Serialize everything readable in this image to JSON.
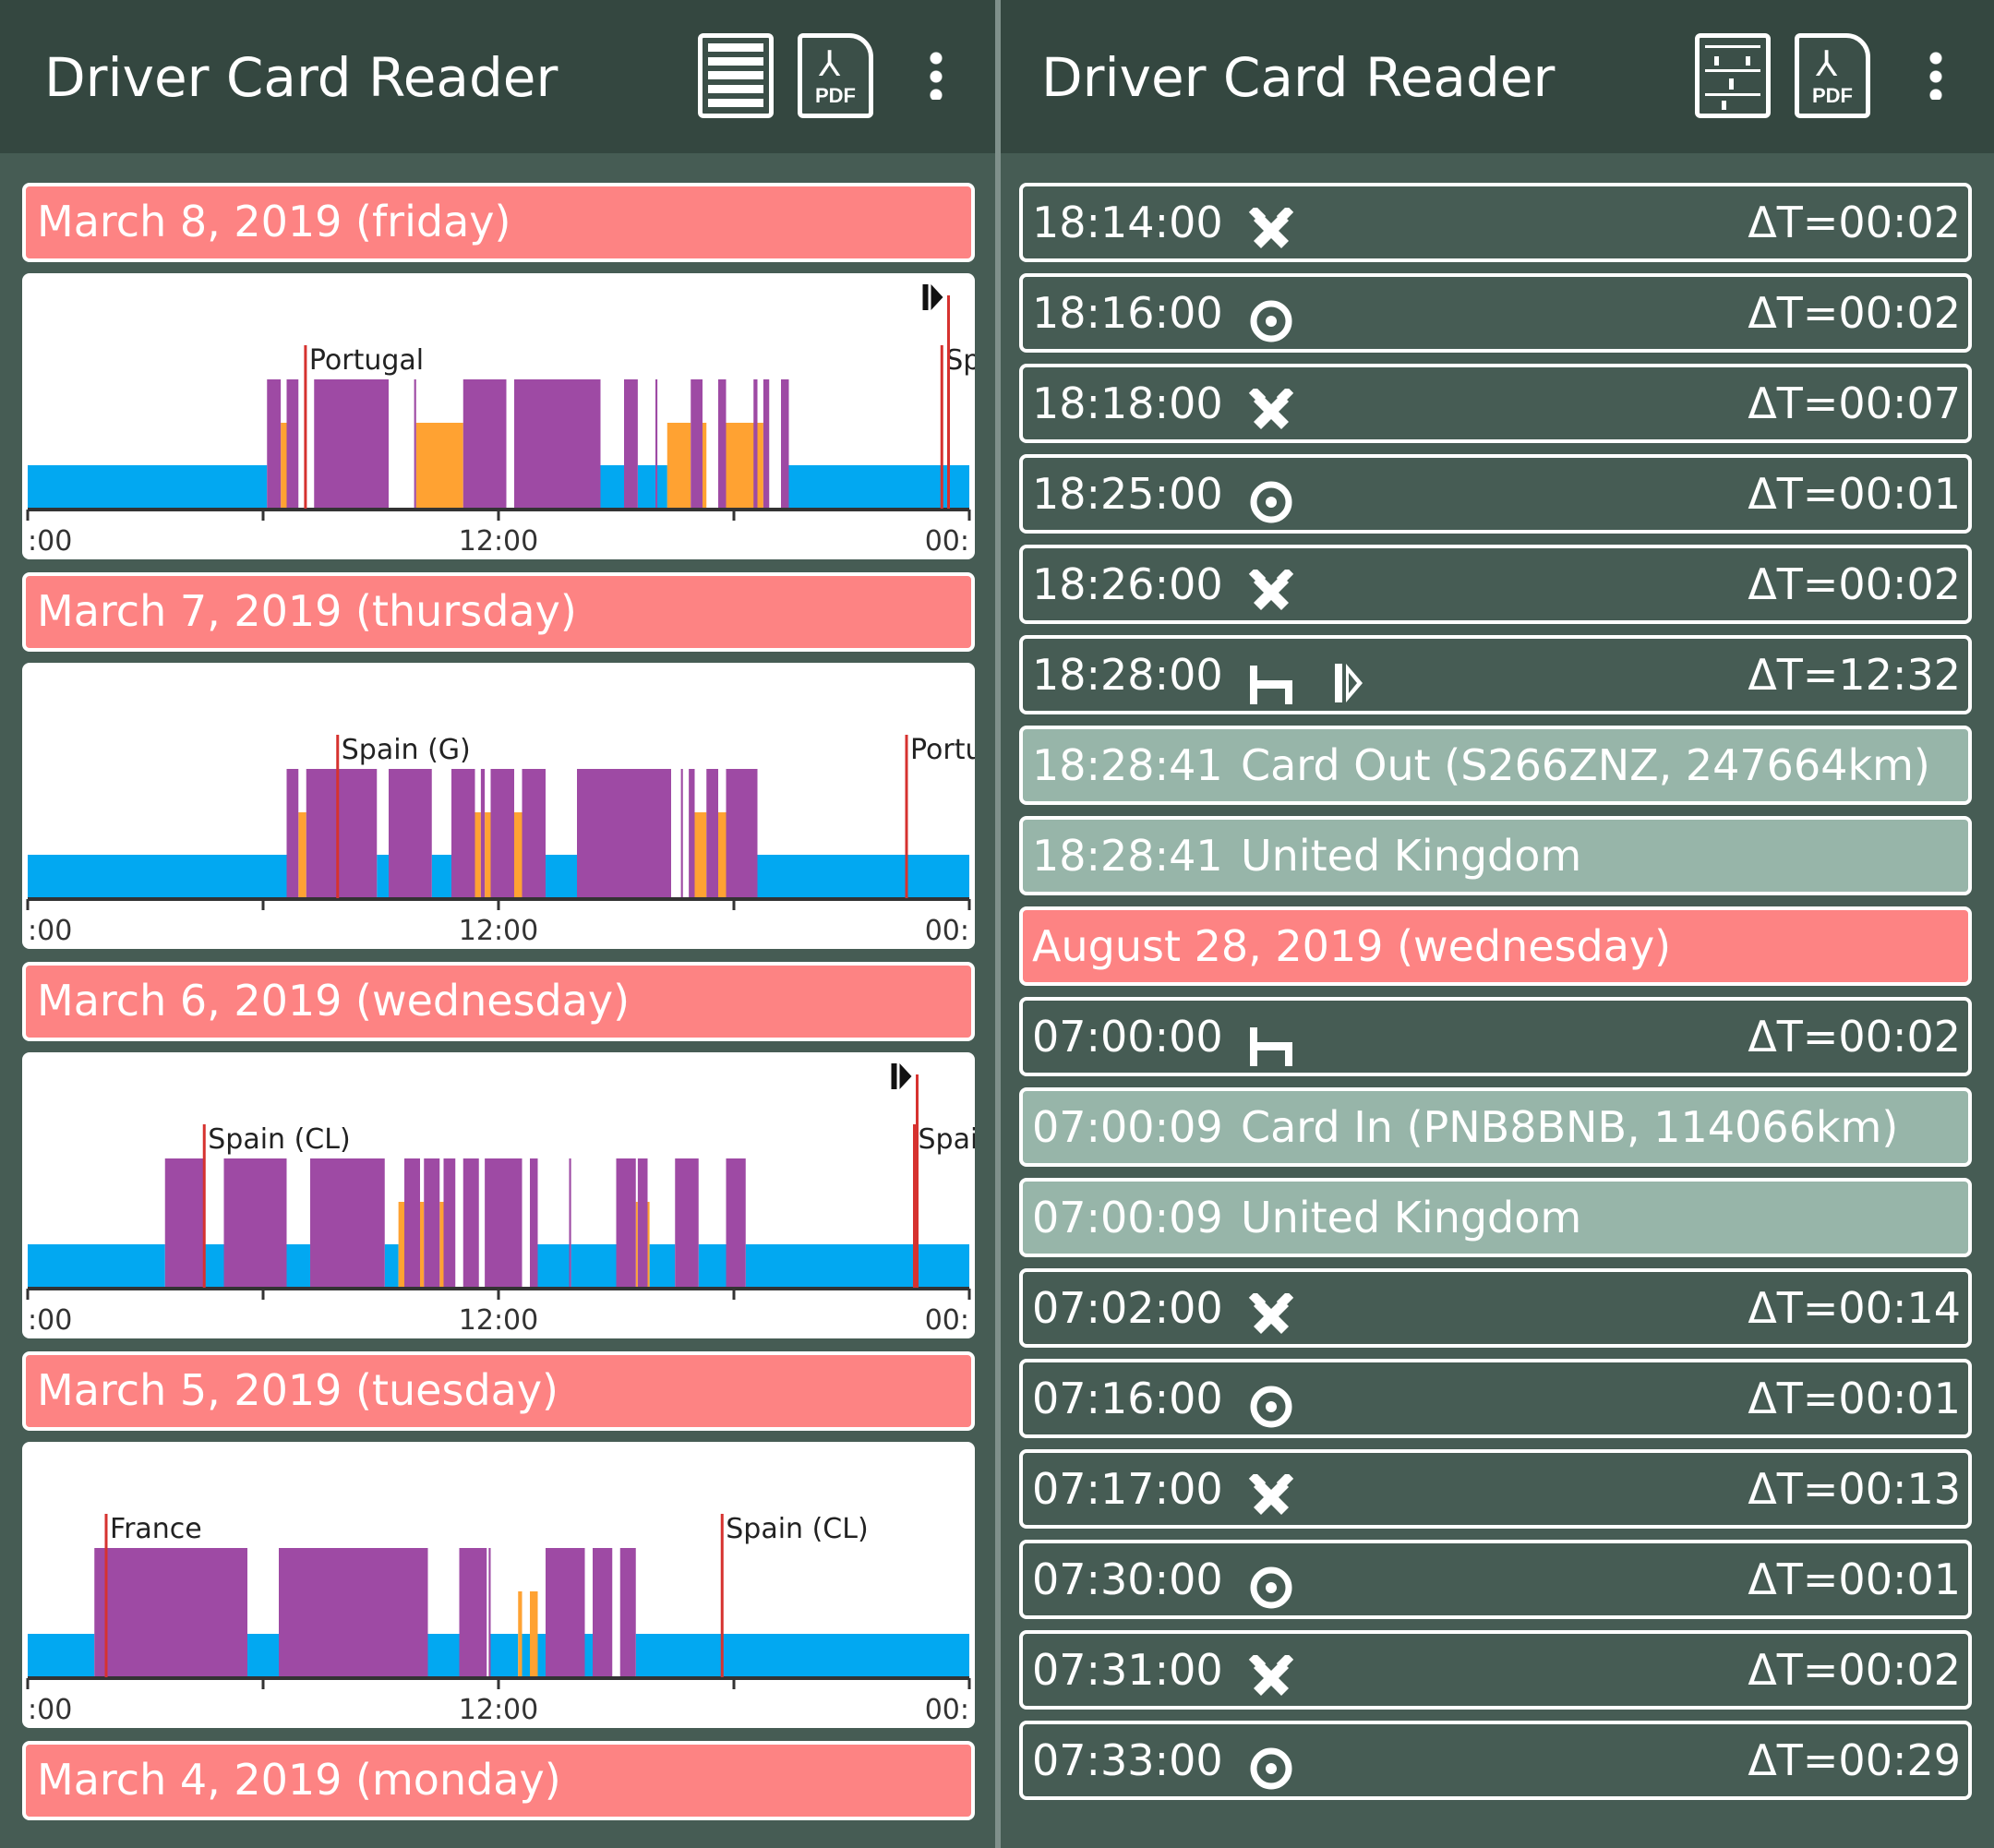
{
  "app_title": "Driver Card Reader",
  "left": {
    "toolbar": {
      "list_icon": "list-view-icon",
      "pdf_label": "PDF",
      "menu_icon": "more-vert-icon"
    },
    "days": [
      {
        "header": "March 8, 2019 (friday)",
        "countries": [
          {
            "at": 7.08,
            "label": "Portugal"
          },
          {
            "at": 23.3,
            "label": "Spain (G)"
          }
        ],
        "card_mark_at": 23.0
      },
      {
        "header": "March 7, 2019 (thursday)",
        "countries": [
          {
            "at": 7.9,
            "label": "Spain (G)"
          },
          {
            "at": 22.4,
            "label": "Portugal"
          }
        ],
        "card_mark_at": null
      },
      {
        "header": "March 6, 2019 (wednesday)",
        "countries": [
          {
            "at": 4.5,
            "label": "Spain (CL)"
          },
          {
            "at": 22.6,
            "label": "Spain (G)"
          }
        ],
        "card_mark_at": 22.2
      },
      {
        "header": "March 5, 2019 (tuesday)",
        "countries": [
          {
            "at": 2.0,
            "label": "France"
          },
          {
            "at": 17.7,
            "label": "Spain (CL)"
          }
        ],
        "card_mark_at": null
      },
      {
        "header": "March 4, 2019 (monday)"
      }
    ],
    "axis_labels": [
      ":00",
      "12:00",
      "00:"
    ]
  },
  "chart_data": [
    {
      "type": "area",
      "title": "",
      "xlabel": "",
      "ylabel": "",
      "x_range_hours": [
        0,
        24
      ],
      "tick_labels": [
        ":00",
        "12:00",
        "00:"
      ],
      "series": [
        {
          "name": "",
          "color": "#9e4aa4",
          "level": "drive",
          "intervals": [
            [
              6.1,
              6.45
            ],
            [
              6.6,
              6.9
            ],
            [
              7.3,
              9.2
            ],
            [
              8.9,
              9.1
            ],
            [
              9.85,
              9.9
            ],
            [
              11.1,
              12.2
            ],
            [
              12.4,
              14.6
            ],
            [
              15.2,
              15.55
            ],
            [
              16.0,
              16.05
            ],
            [
              16.9,
              17.2
            ],
            [
              17.6,
              17.8
            ],
            [
              18.5,
              18.6
            ],
            [
              18.75,
              18.9
            ],
            [
              19.2,
              19.4
            ]
          ]
        },
        {
          "name": "",
          "color": "#ffa232",
          "level": "work",
          "intervals": [
            [
              6.45,
              6.6
            ],
            [
              9.9,
              11.1
            ],
            [
              16.3,
              16.9
            ],
            [
              17.2,
              17.3
            ],
            [
              17.8,
              18.7
            ],
            [
              18.6,
              18.75
            ]
          ]
        },
        {
          "name": "",
          "color": "#02a8f1",
          "level": "rest",
          "intervals": [
            [
              0,
              6.1
            ],
            [
              14.6,
              15.2
            ],
            [
              15.55,
              16.3
            ],
            [
              16.05,
              16.3
            ],
            [
              19.4,
              24
            ]
          ]
        }
      ]
    },
    {
      "type": "area",
      "title": "",
      "xlabel": "",
      "ylabel": "",
      "x_range_hours": [
        0,
        24
      ],
      "tick_labels": [
        ":00",
        "12:00",
        "00:"
      ],
      "series": [
        {
          "name": "",
          "color": "#9e4aa4",
          "level": "drive",
          "intervals": [
            [
              6.6,
              6.9
            ],
            [
              7.1,
              7.2
            ],
            [
              7.2,
              8.9
            ],
            [
              9.2,
              10.3
            ],
            [
              10.8,
              11.4
            ],
            [
              11.55,
              11.65
            ],
            [
              11.8,
              12.4
            ],
            [
              12.6,
              13.2
            ],
            [
              14.0,
              16.4
            ],
            [
              16.65,
              16.7
            ],
            [
              16.85,
              17.0
            ],
            [
              17.3,
              17.6
            ],
            [
              17.8,
              18.6
            ]
          ]
        },
        {
          "name": "",
          "color": "#ffa232",
          "level": "work",
          "intervals": [
            [
              6.9,
              7.1
            ],
            [
              11.4,
              11.55
            ],
            [
              11.65,
              12.6
            ],
            [
              17.0,
              17.3
            ],
            [
              17.6,
              17.8
            ]
          ]
        },
        {
          "name": "",
          "color": "#02a8f1",
          "level": "rest",
          "intervals": [
            [
              0,
              6.6
            ],
            [
              8.9,
              9.2
            ],
            [
              10.3,
              10.8
            ],
            [
              13.2,
              14.0
            ],
            [
              18.6,
              24
            ]
          ]
        }
      ]
    },
    {
      "type": "area",
      "title": "",
      "xlabel": "",
      "ylabel": "",
      "x_range_hours": [
        0,
        24
      ],
      "tick_labels": [
        ":00",
        "12:00",
        "00:"
      ],
      "series": [
        {
          "name": "",
          "color": "#9e4aa4",
          "level": "drive",
          "intervals": [
            [
              3.5,
              4.5
            ],
            [
              5.0,
              6.6
            ],
            [
              7.2,
              9.1
            ],
            [
              9.6,
              10.0
            ],
            [
              10.1,
              10.5
            ],
            [
              10.6,
              10.9
            ],
            [
              11.1,
              11.5
            ],
            [
              11.65,
              12.6
            ],
            [
              12.8,
              13.0
            ],
            [
              13.8,
              13.85
            ],
            [
              15.0,
              15.5
            ],
            [
              15.55,
              15.8
            ],
            [
              16.5,
              17.1
            ],
            [
              17.8,
              18.3
            ]
          ]
        },
        {
          "name": "",
          "color": "#ffa232",
          "level": "work",
          "intervals": [
            [
              9.45,
              9.6
            ],
            [
              10.0,
              10.1
            ],
            [
              10.5,
              10.6
            ],
            [
              15.5,
              15.55
            ],
            [
              15.8,
              15.85
            ]
          ]
        },
        {
          "name": "",
          "color": "#02a8f1",
          "level": "rest",
          "intervals": [
            [
              0,
              3.5
            ],
            [
              4.5,
              5.0
            ],
            [
              6.6,
              7.2
            ],
            [
              9.1,
              9.45
            ],
            [
              13.0,
              13.8
            ],
            [
              13.85,
              15.0
            ],
            [
              15.85,
              16.5
            ],
            [
              17.1,
              17.8
            ],
            [
              18.3,
              24
            ]
          ]
        }
      ]
    },
    {
      "type": "area",
      "title": "",
      "xlabel": "",
      "ylabel": "",
      "x_range_hours": [
        0,
        24
      ],
      "tick_labels": [
        ":00",
        "12:00",
        "00:"
      ],
      "series": [
        {
          "name": "",
          "color": "#9e4aa4",
          "level": "drive",
          "intervals": [
            [
              1.7,
              5.6
            ],
            [
              6.4,
              10.2
            ],
            [
              11.0,
              11.7
            ],
            [
              11.75,
              11.8
            ],
            [
              13.2,
              14.2
            ],
            [
              14.4,
              14.9
            ],
            [
              15.1,
              15.5
            ]
          ]
        },
        {
          "name": "",
          "color": "#ffa232",
          "level": "work",
          "intervals": [
            [
              12.5,
              12.6
            ],
            [
              12.8,
              13.0
            ]
          ]
        },
        {
          "name": "",
          "color": "#02a8f1",
          "level": "rest",
          "intervals": [
            [
              0,
              1.7
            ],
            [
              5.6,
              6.4
            ],
            [
              10.2,
              11.0
            ],
            [
              11.8,
              12.5
            ],
            [
              12.6,
              12.8
            ],
            [
              13.0,
              13.2
            ],
            [
              14.2,
              14.4
            ],
            [
              15.5,
              24
            ]
          ]
        }
      ]
    }
  ],
  "right": {
    "toolbar": {
      "graph_icon": "graph-view-icon",
      "pdf_label": "PDF",
      "menu_icon": "more-vert-icon"
    },
    "rows": [
      {
        "kind": "activity",
        "time": "18:14:00",
        "icon": "work-icon",
        "delta": "ΔT=00:02"
      },
      {
        "kind": "activity",
        "time": "18:16:00",
        "icon": "availability-icon",
        "delta": "ΔT=00:02"
      },
      {
        "kind": "activity",
        "time": "18:18:00",
        "icon": "work-icon",
        "delta": "ΔT=00:07"
      },
      {
        "kind": "activity",
        "time": "18:25:00",
        "icon": "availability-icon",
        "delta": "ΔT=00:01"
      },
      {
        "kind": "activity",
        "time": "18:26:00",
        "icon": "work-icon",
        "delta": "ΔT=00:02"
      },
      {
        "kind": "activity",
        "time": "18:28:00",
        "icon": "rest-bed-icon",
        "icon2": "card-out-icon",
        "delta": "ΔT=12:32"
      },
      {
        "kind": "event",
        "time": "18:28:41",
        "text": "Card Out (S266ZNZ, 247664km)"
      },
      {
        "kind": "event",
        "time": "18:28:41",
        "text": "United Kingdom"
      },
      {
        "kind": "date",
        "text": "August 28, 2019 (wednesday)"
      },
      {
        "kind": "activity",
        "time": "07:00:00",
        "icon": "rest-bed-icon",
        "delta": "ΔT=00:02"
      },
      {
        "kind": "event",
        "time": "07:00:09",
        "text": "Card In (PNB8BNB, 114066km)"
      },
      {
        "kind": "event",
        "time": "07:00:09",
        "text": "United Kingdom"
      },
      {
        "kind": "activity",
        "time": "07:02:00",
        "icon": "work-icon",
        "delta": "ΔT=00:14"
      },
      {
        "kind": "activity",
        "time": "07:16:00",
        "icon": "availability-icon",
        "delta": "ΔT=00:01"
      },
      {
        "kind": "activity",
        "time": "07:17:00",
        "icon": "work-icon",
        "delta": "ΔT=00:13"
      },
      {
        "kind": "activity",
        "time": "07:30:00",
        "icon": "availability-icon",
        "delta": "ΔT=00:01"
      },
      {
        "kind": "activity",
        "time": "07:31:00",
        "icon": "work-icon",
        "delta": "ΔT=00:02"
      },
      {
        "kind": "activity",
        "time": "07:33:00",
        "icon": "availability-icon",
        "delta": "ΔT=00:29"
      }
    ]
  }
}
